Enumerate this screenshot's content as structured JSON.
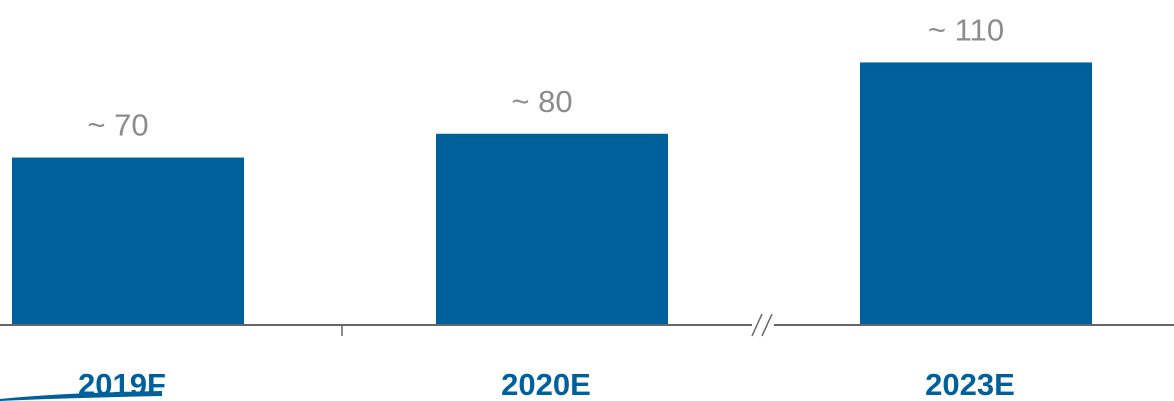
{
  "chart_data": {
    "type": "bar",
    "categories": [
      "2019F",
      "2020E",
      "2023E"
    ],
    "values": [
      70,
      80,
      110
    ],
    "value_labels": [
      "~ 70",
      "~ 80",
      "~ 110"
    ],
    "title": "",
    "xlabel": "",
    "ylabel": "",
    "ylim": [
      0,
      110
    ],
    "axis_break_between": [
      "2020E",
      "2023E"
    ],
    "grid": false,
    "legend": "none",
    "colors": {
      "bar": "#00609c",
      "category_text": "#00609c",
      "value_text": "#8c8c8c",
      "axis": "#666666"
    }
  }
}
